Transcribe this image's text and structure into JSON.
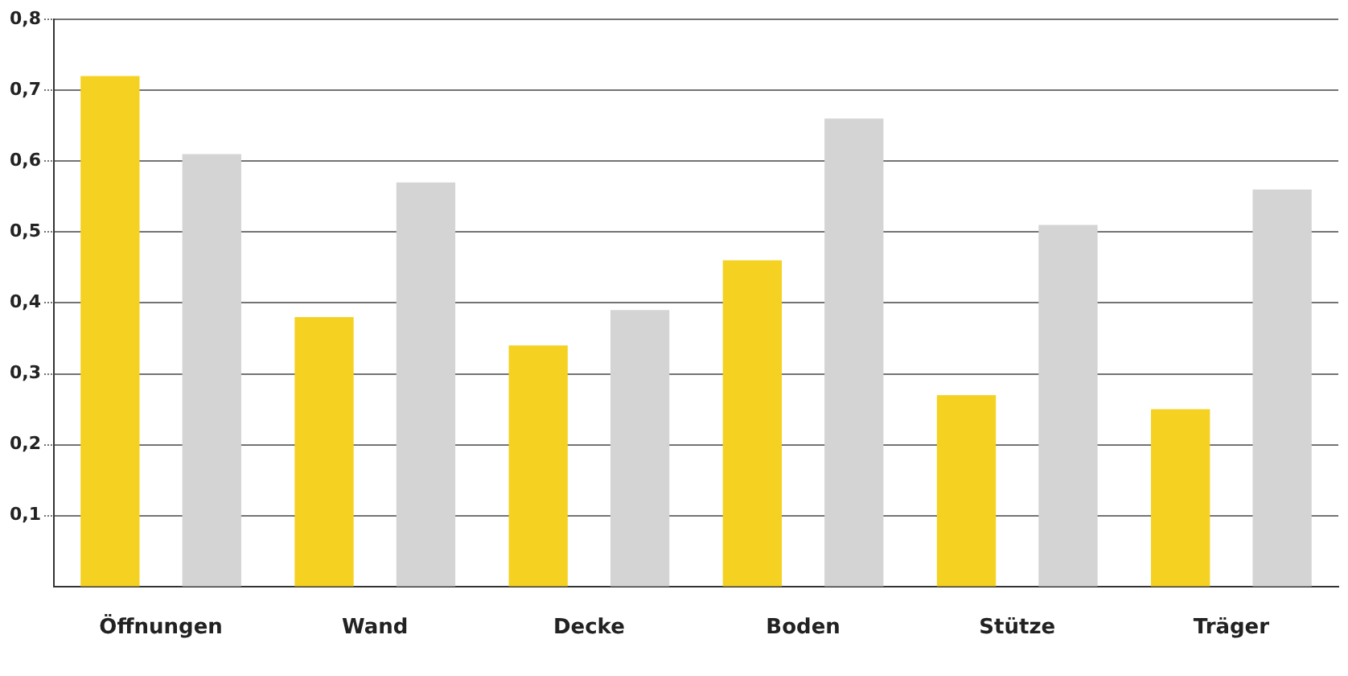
{
  "chart_data": {
    "type": "bar",
    "categories": [
      "Öffnungen",
      "Wand",
      "Decke",
      "Boden",
      "Stütze",
      "Träger"
    ],
    "series": [
      {
        "color": "#f5d122",
        "values": [
          0.72,
          0.38,
          0.34,
          0.46,
          0.27,
          0.25
        ]
      },
      {
        "color": "#d4d4d4",
        "values": [
          0.61,
          0.57,
          0.39,
          0.66,
          0.51,
          0.56
        ]
      }
    ],
    "ylim": [
      0,
      0.8
    ],
    "yticks": [
      {
        "value": 0.1,
        "label": "0,1"
      },
      {
        "value": 0.2,
        "label": "0,2"
      },
      {
        "value": 0.3,
        "label": "0,3"
      },
      {
        "value": 0.4,
        "label": "0,4"
      },
      {
        "value": 0.5,
        "label": "0,5"
      },
      {
        "value": 0.6,
        "label": "0,6"
      },
      {
        "value": 0.7,
        "label": "0,7"
      },
      {
        "value": 0.8,
        "label": "0,8"
      }
    ],
    "grid": "y",
    "legend": false
  }
}
